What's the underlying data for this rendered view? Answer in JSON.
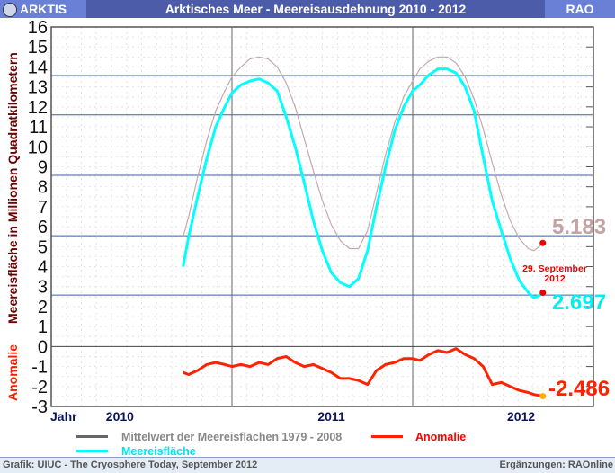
{
  "header": {
    "section": "ARKTIS",
    "title": "Arktisches Meer - Meereisausdehnung 2010 - 2012",
    "brand": "RAO"
  },
  "footer": {
    "source": "Grafik: UIUC - The Cryosphere Today, September 2012",
    "additions": "Ergänzungen: RAOnline"
  },
  "chart_data": {
    "type": "line",
    "title": "Arktisches Meer - Meereisausdehnung 2010 - 2012",
    "ylabel": "Meereisfläche in Millionen Quadratkilometern",
    "ylabel2": "Anomalie",
    "xlabel": "Jahr",
    "xlim": [
      2010,
      2013
    ],
    "ylim": [
      -3,
      16
    ],
    "yticks": [
      "16",
      "15",
      "14",
      "13",
      "12",
      "11",
      "10",
      "9",
      "8",
      "7",
      "6",
      "5",
      "4",
      "3",
      "2",
      "1",
      "0",
      "-1",
      "-2",
      "-3"
    ],
    "xticks": [
      {
        "label": "2010",
        "x": 2010.38
      },
      {
        "label": "2011",
        "x": 2011.55
      },
      {
        "label": "2012",
        "x": 2012.6
      }
    ],
    "year_lines": [
      2011,
      2012
    ],
    "reference_lines": [
      13.57,
      11.6,
      8.57,
      5.55,
      2.58
    ],
    "grid": true,
    "legend": {
      "placement": "bottom",
      "items": [
        {
          "label": "Mittelwert der Meereisflächen 1979 - 2008",
          "color": "#666666"
        },
        {
          "label": "Anomalie",
          "color": "#ff2200"
        },
        {
          "label": "Meereisfläche",
          "color": "#00ffff"
        }
      ]
    },
    "x": [
      2010.73,
      2010.76,
      2010.81,
      2010.86,
      2010.91,
      2010.96,
      2011.0,
      2011.05,
      2011.1,
      2011.15,
      2011.2,
      2011.25,
      2011.3,
      2011.35,
      2011.4,
      2011.45,
      2011.5,
      2011.55,
      2011.6,
      2011.65,
      2011.7,
      2011.75,
      2011.8,
      2011.85,
      2011.9,
      2011.95,
      2012.0,
      2012.04,
      2012.09,
      2012.14,
      2012.19,
      2012.24,
      2012.29,
      2012.34,
      2012.39,
      2012.44,
      2012.49,
      2012.54,
      2012.59,
      2012.64,
      2012.67,
      2012.7,
      2012.72
    ],
    "series": [
      {
        "name": "Mittelwert der Meereisflächen 1979 - 2008",
        "color": "#c4a8ac",
        "values": [
          5.5,
          6.5,
          8.5,
          10.3,
          11.8,
          12.8,
          13.5,
          14.0,
          14.4,
          14.5,
          14.4,
          14.0,
          13.2,
          12.0,
          10.4,
          8.8,
          7.3,
          6.1,
          5.3,
          4.9,
          4.9,
          5.8,
          7.7,
          9.6,
          11.2,
          12.5,
          13.3,
          13.9,
          14.3,
          14.5,
          14.5,
          14.2,
          13.5,
          12.4,
          10.9,
          9.2,
          7.6,
          6.3,
          5.4,
          4.9,
          4.8,
          5.0,
          5.183
        ]
      },
      {
        "name": "Meereisfläche",
        "color": "#00ffff",
        "values": [
          4.0,
          5.5,
          7.5,
          9.4,
          11.0,
          12.0,
          12.7,
          13.1,
          13.3,
          13.4,
          13.2,
          12.8,
          11.5,
          10.0,
          8.2,
          6.3,
          4.8,
          3.7,
          3.2,
          3.0,
          3.4,
          4.8,
          7.0,
          9.0,
          10.8,
          12.0,
          12.8,
          13.1,
          13.6,
          13.9,
          13.9,
          13.7,
          13.0,
          11.8,
          9.5,
          7.3,
          5.8,
          4.4,
          3.3,
          2.7,
          2.45,
          2.55,
          2.697
        ]
      },
      {
        "name": "Anomalie",
        "color": "#ff2200",
        "values": [
          -1.3,
          -1.4,
          -1.2,
          -0.9,
          -0.8,
          -0.9,
          -1.0,
          -0.9,
          -1.0,
          -0.8,
          -0.9,
          -0.6,
          -0.5,
          -0.8,
          -1.0,
          -0.9,
          -1.1,
          -1.3,
          -1.6,
          -1.6,
          -1.7,
          -1.9,
          -1.2,
          -0.9,
          -0.8,
          -0.6,
          -0.6,
          -0.7,
          -0.4,
          -0.2,
          -0.3,
          -0.1,
          -0.4,
          -0.6,
          -1.0,
          -1.9,
          -1.8,
          -2.0,
          -2.2,
          -2.3,
          -2.4,
          -2.45,
          -2.486
        ]
      }
    ],
    "annotations": {
      "date": "29. September",
      "year": "2012",
      "mean_value": "5.183",
      "extent_value": "2.697",
      "anomaly_value": "-2.486"
    }
  }
}
